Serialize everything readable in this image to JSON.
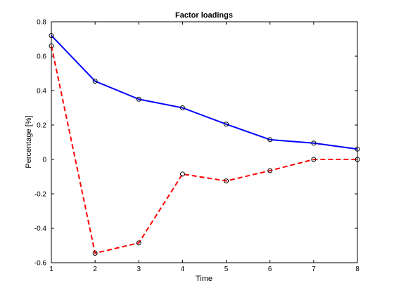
{
  "chart_data": {
    "type": "line",
    "title": "Factor loadings",
    "xlabel": "Time",
    "ylabel": "Percentage [%]",
    "xlim": [
      1,
      8
    ],
    "ylim": [
      -0.6,
      0.8
    ],
    "x": [
      1,
      2,
      3,
      4,
      5,
      6,
      7,
      8
    ],
    "x_ticks": [
      "1",
      "2",
      "3",
      "4",
      "5",
      "6",
      "7",
      "8"
    ],
    "y_ticks": [
      "-0.6",
      "-0.4",
      "-0.2",
      "0",
      "0.2",
      "0.4",
      "0.6",
      "0.8"
    ],
    "grid": false,
    "series": [
      {
        "values": [
          0.72,
          0.455,
          0.35,
          0.3,
          0.205,
          0.115,
          0.095,
          0.06
        ],
        "color": "#0000ff",
        "line_style": "solid",
        "marker": "circle"
      },
      {
        "values": [
          0.66,
          -0.545,
          -0.485,
          -0.085,
          -0.125,
          -0.065,
          0.0,
          0.0
        ],
        "color": "#ff0000",
        "line_style": "dashed",
        "marker": "circle"
      }
    ]
  }
}
